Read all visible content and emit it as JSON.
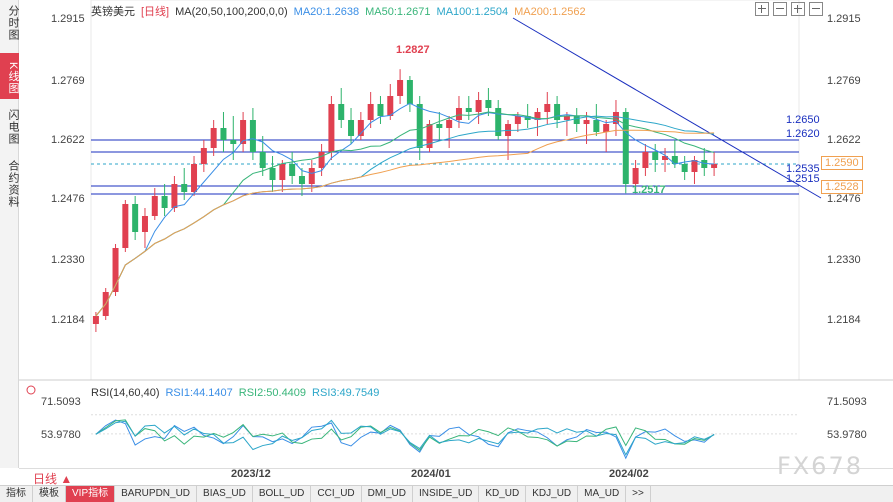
{
  "side_tabs": [
    {
      "label": "分时图",
      "active": false
    },
    {
      "label": "K线图",
      "active": true
    },
    {
      "label": "闪电图",
      "active": false
    },
    {
      "label": "合约资料",
      "active": false
    }
  ],
  "legend": {
    "symbol": "英镑美元",
    "period": "[日线]",
    "ma_label": "MA(20,50,100,200,0,0)",
    "ma20": "MA20:1.2638",
    "ma50": "MA50:1.2671",
    "ma100": "MA100:1.2504",
    "ma200": "MA200:1.2562"
  },
  "rsi_legend": {
    "label": "RSI(14,60,40)",
    "rsi1": "RSI1:44.1407",
    "rsi2": "RSI2:50.4409",
    "rsi3": "RSI3:49.7549"
  },
  "price_axis": [
    "1.2915",
    "1.2769",
    "1.2622",
    "1.2476",
    "1.2330",
    "1.2184"
  ],
  "rsi_axis": [
    "71.5093",
    "53.9780"
  ],
  "levels": {
    "high_mark": "1.2827",
    "low_mark": "1.2517",
    "line_1650": "1.2650",
    "line_1620": "1.2620",
    "line_2535": "1.2535",
    "line_2515": "1.2515",
    "current": "1.2590",
    "ma_tag": "1.2528"
  },
  "date_axis": [
    "2023/12",
    "2024/01",
    "2024/02"
  ],
  "period_select": "日线 ▲",
  "bottom_tabs": [
    "指标",
    "模板",
    "VIP指标",
    "BARUPDN_UD",
    "BIAS_UD",
    "BOLL_UD",
    "CCI_UD",
    "DMI_UD",
    "INSIDE_UD",
    "KD_UD",
    "KDJ_UD",
    "MA_UD",
    ">>"
  ],
  "watermark": "FX678",
  "colors": {
    "up": "#e04050",
    "down": "#2db36b",
    "accent": "#e04050"
  },
  "chart_data": {
    "type": "candlestick",
    "ylim": [
      1.215,
      1.295
    ],
    "candles": [
      [
        1.219,
        1.222,
        1.217,
        1.221
      ],
      [
        1.221,
        1.228,
        1.22,
        1.227
      ],
      [
        1.227,
        1.239,
        1.226,
        1.238
      ],
      [
        1.238,
        1.25,
        1.237,
        1.249
      ],
      [
        1.249,
        1.251,
        1.24,
        1.242
      ],
      [
        1.242,
        1.248,
        1.238,
        1.246
      ],
      [
        1.246,
        1.253,
        1.245,
        1.251
      ],
      [
        1.251,
        1.254,
        1.246,
        1.248
      ],
      [
        1.248,
        1.256,
        1.247,
        1.254
      ],
      [
        1.254,
        1.258,
        1.25,
        1.252
      ],
      [
        1.252,
        1.261,
        1.251,
        1.259
      ],
      [
        1.259,
        1.265,
        1.257,
        1.263
      ],
      [
        1.263,
        1.27,
        1.261,
        1.268
      ],
      [
        1.268,
        1.272,
        1.262,
        1.265
      ],
      [
        1.265,
        1.271,
        1.26,
        1.264
      ],
      [
        1.264,
        1.272,
        1.262,
        1.27
      ],
      [
        1.27,
        1.273,
        1.26,
        1.262
      ],
      [
        1.262,
        1.266,
        1.256,
        1.258
      ],
      [
        1.258,
        1.261,
        1.252,
        1.255
      ],
      [
        1.255,
        1.26,
        1.252,
        1.259
      ],
      [
        1.259,
        1.262,
        1.254,
        1.256
      ],
      [
        1.256,
        1.258,
        1.251,
        1.254
      ],
      [
        1.254,
        1.26,
        1.252,
        1.258
      ],
      [
        1.258,
        1.264,
        1.256,
        1.262
      ],
      [
        1.262,
        1.276,
        1.26,
        1.274
      ],
      [
        1.274,
        1.278,
        1.268,
        1.27
      ],
      [
        1.27,
        1.273,
        1.264,
        1.266
      ],
      [
        1.266,
        1.272,
        1.265,
        1.27
      ],
      [
        1.27,
        1.277,
        1.268,
        1.274
      ],
      [
        1.274,
        1.276,
        1.269,
        1.271
      ],
      [
        1.271,
        1.279,
        1.27,
        1.276
      ],
      [
        1.276,
        1.2827,
        1.274,
        1.28
      ],
      [
        1.28,
        1.281,
        1.272,
        1.274
      ],
      [
        1.274,
        1.276,
        1.26,
        1.263
      ],
      [
        1.263,
        1.27,
        1.262,
        1.269
      ],
      [
        1.269,
        1.272,
        1.265,
        1.268
      ],
      [
        1.268,
        1.271,
        1.263,
        1.27
      ],
      [
        1.27,
        1.276,
        1.268,
        1.273
      ],
      [
        1.273,
        1.276,
        1.27,
        1.272
      ],
      [
        1.272,
        1.277,
        1.269,
        1.275
      ],
      [
        1.275,
        1.278,
        1.271,
        1.273
      ],
      [
        1.273,
        1.275,
        1.265,
        1.266
      ],
      [
        1.266,
        1.27,
        1.26,
        1.269
      ],
      [
        1.269,
        1.272,
        1.267,
        1.271
      ],
      [
        1.271,
        1.274,
        1.268,
        1.27
      ],
      [
        1.27,
        1.273,
        1.266,
        1.272
      ],
      [
        1.272,
        1.277,
        1.269,
        1.274
      ],
      [
        1.274,
        1.276,
        1.268,
        1.27
      ],
      [
        1.27,
        1.272,
        1.266,
        1.271
      ],
      [
        1.271,
        1.273,
        1.267,
        1.269
      ],
      [
        1.269,
        1.272,
        1.264,
        1.27
      ],
      [
        1.27,
        1.274,
        1.266,
        1.267
      ],
      [
        1.267,
        1.27,
        1.262,
        1.269
      ],
      [
        1.269,
        1.275,
        1.266,
        1.272
      ],
      [
        1.272,
        1.273,
        1.2517,
        1.254
      ],
      [
        1.254,
        1.26,
        1.2517,
        1.258
      ],
      [
        1.258,
        1.264,
        1.256,
        1.262
      ],
      [
        1.262,
        1.264,
        1.257,
        1.26
      ],
      [
        1.26,
        1.263,
        1.257,
        1.261
      ],
      [
        1.261,
        1.265,
        1.258,
        1.259
      ],
      [
        1.259,
        1.261,
        1.255,
        1.257
      ],
      [
        1.257,
        1.261,
        1.254,
        1.26
      ],
      [
        1.26,
        1.263,
        1.256,
        1.258
      ],
      [
        1.258,
        1.262,
        1.256,
        1.259
      ]
    ],
    "rsi_ylim": [
      30,
      85
    ]
  }
}
